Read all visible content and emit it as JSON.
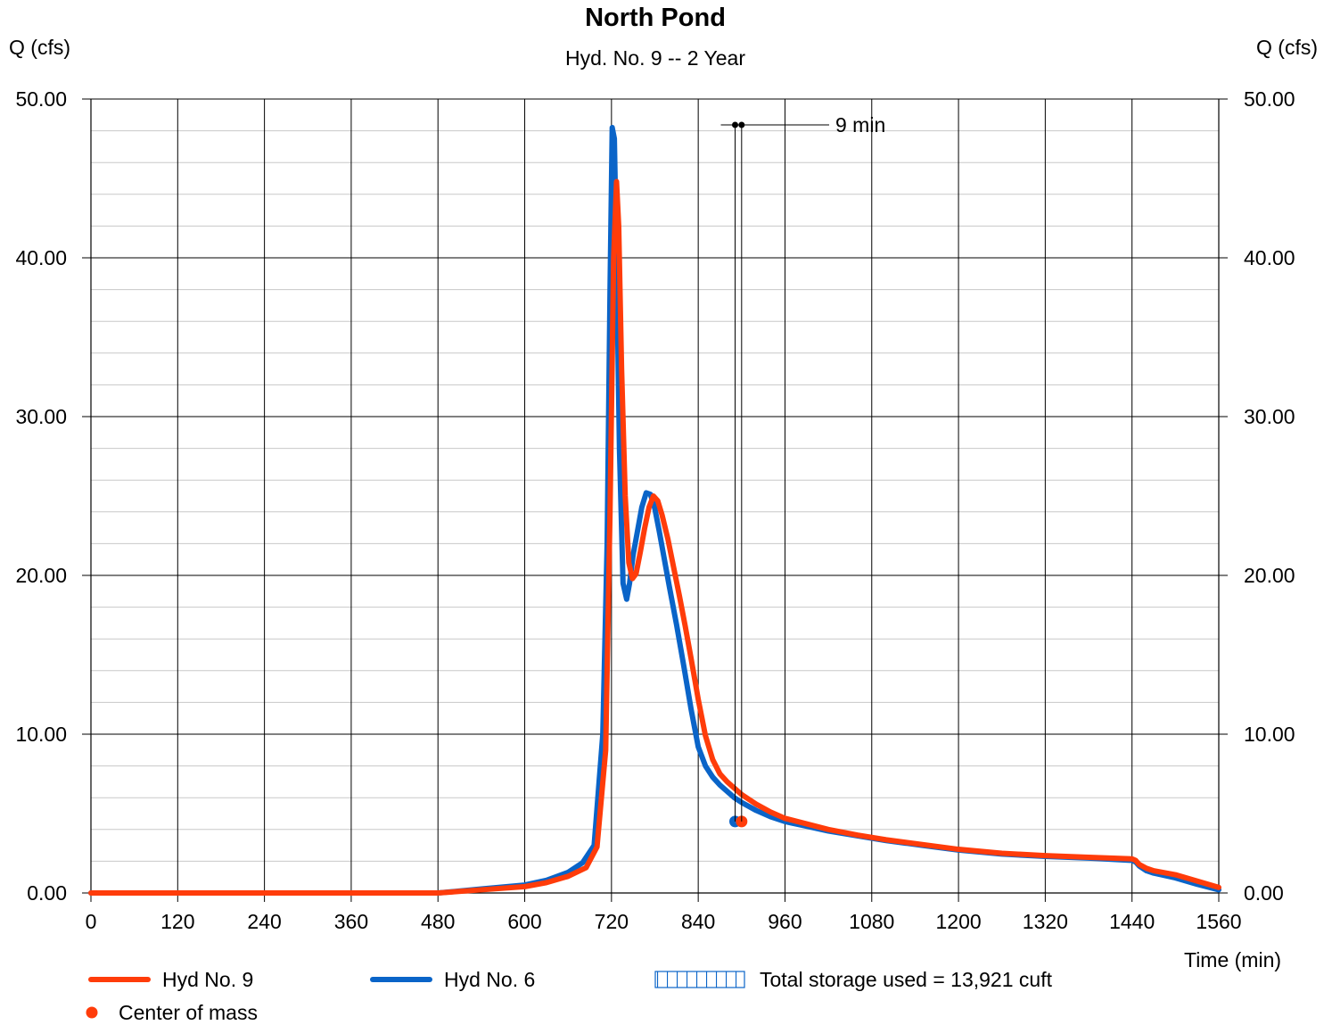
{
  "chart_data": {
    "type": "line",
    "title": "North Pond",
    "subtitle": "Hyd. No. 9 -- 2 Year",
    "ylabel_left": "Q (cfs)",
    "ylabel_right": "Q (cfs)",
    "xlabel": "Time (min)",
    "xlim": [
      0,
      1560
    ],
    "ylim": [
      0,
      50
    ],
    "x_ticks": [
      0,
      120,
      240,
      360,
      480,
      600,
      720,
      840,
      960,
      1080,
      1200,
      1320,
      1440,
      1560
    ],
    "y_ticks": [
      0,
      10,
      20,
      30,
      40,
      50
    ],
    "y_tick_labels": [
      "0.00",
      "10.00",
      "20.00",
      "30.00",
      "40.00",
      "50.00"
    ],
    "grid": true,
    "minor_y_step": 2,
    "series": [
      {
        "name": "Hyd No. 6",
        "color": "#0a64c8",
        "x": [
          0,
          480,
          540,
          600,
          630,
          660,
          680,
          696,
          708,
          714,
          718,
          721,
          724,
          727,
          731,
          736,
          741,
          745,
          750,
          756,
          762,
          768,
          774,
          780,
          786,
          792,
          800,
          810,
          820,
          830,
          840,
          850,
          860,
          870,
          880,
          890,
          900,
          920,
          940,
          960,
          990,
          1020,
          1060,
          1100,
          1150,
          1200,
          1260,
          1320,
          1380,
          1440,
          1445,
          1450,
          1460,
          1470,
          1500,
          1530,
          1560
        ],
        "y": [
          0,
          0,
          0.25,
          0.5,
          0.8,
          1.3,
          1.9,
          3.0,
          10,
          22,
          38,
          48.2,
          47.5,
          40,
          28,
          19.5,
          18.5,
          19.5,
          21.3,
          22.8,
          24.3,
          25.2,
          25.1,
          24.2,
          22.8,
          21.3,
          19.3,
          16.9,
          14.3,
          11.6,
          9.2,
          8.0,
          7.3,
          6.8,
          6.4,
          6.0,
          5.7,
          5.2,
          4.8,
          4.5,
          4.2,
          3.9,
          3.6,
          3.3,
          3.0,
          2.7,
          2.45,
          2.3,
          2.2,
          2.05,
          1.95,
          1.7,
          1.4,
          1.25,
          0.95,
          0.55,
          0.2
        ]
      },
      {
        "name": "Hyd No. 9",
        "color": "#ff3c0a",
        "x": [
          0,
          480,
          540,
          600,
          630,
          660,
          685,
          700,
          712,
          718,
          723,
          727,
          730,
          734,
          739,
          744,
          749,
          754,
          760,
          766,
          772,
          778,
          784,
          790,
          798,
          806,
          814,
          822,
          830,
          840,
          850,
          860,
          870,
          880,
          890,
          900,
          920,
          940,
          960,
          990,
          1020,
          1060,
          1100,
          1150,
          1200,
          1260,
          1320,
          1380,
          1440,
          1445,
          1450,
          1460,
          1470,
          1500,
          1530,
          1560
        ],
        "y": [
          0,
          0,
          0.2,
          0.4,
          0.65,
          1.05,
          1.6,
          2.9,
          9,
          24,
          40,
          44.8,
          42,
          33,
          25,
          20.8,
          19.8,
          20.1,
          21.5,
          23.0,
          24.3,
          25.0,
          24.7,
          23.8,
          22.3,
          20.5,
          18.7,
          16.8,
          14.8,
          12.2,
          9.9,
          8.4,
          7.5,
          7.0,
          6.6,
          6.2,
          5.6,
          5.1,
          4.7,
          4.35,
          4.0,
          3.65,
          3.35,
          3.05,
          2.75,
          2.5,
          2.35,
          2.25,
          2.15,
          2.05,
          1.8,
          1.55,
          1.4,
          1.15,
          0.75,
          0.35
        ]
      }
    ],
    "center_of_mass": [
      {
        "series": "Hyd No. 6",
        "x": 891,
        "y": 4.5,
        "color": "#0a64c8"
      },
      {
        "series": "Hyd No. 9",
        "x": 900,
        "y": 4.5,
        "color": "#ff3c0a"
      }
    ],
    "annotation": {
      "text": "9 min",
      "x_start": 891,
      "x_end": 900
    },
    "legend": {
      "placement": "bottom",
      "items": [
        {
          "label": "Hyd No. 9",
          "kind": "line",
          "color": "#ff3c0a"
        },
        {
          "label": "Hyd No. 6",
          "kind": "line",
          "color": "#0a64c8"
        },
        {
          "label": "Total storage used = 13,921 cuft",
          "kind": "hatch",
          "color": "#0a64c8"
        },
        {
          "label": "Center of mass",
          "kind": "dot",
          "color": "#ff3c0a"
        }
      ]
    }
  }
}
